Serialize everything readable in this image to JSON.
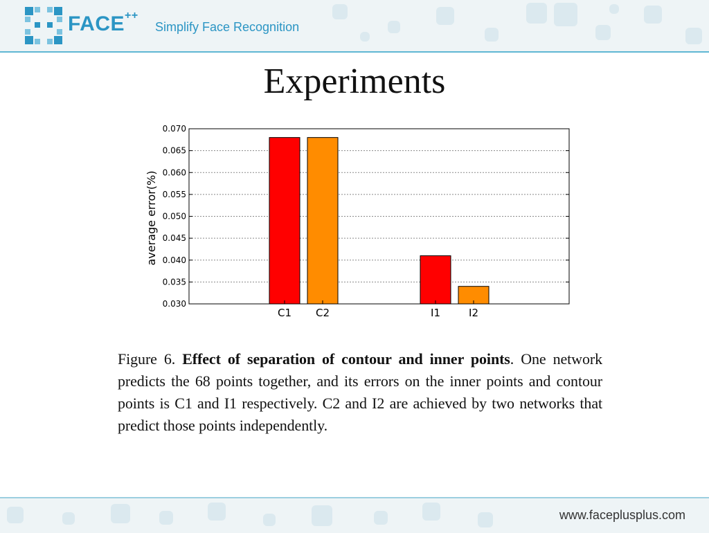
{
  "header": {
    "logo_text": "FACE",
    "logo_sup": "++",
    "tagline": "Simplify Face Recognition"
  },
  "slide": {
    "title": "Experiments"
  },
  "caption": {
    "prefix": "Figure 6. ",
    "bold": "Effect of separation of contour and inner points",
    "rest": ". One network predicts the 68 points together, and its errors on the inner points and contour points is C1 and I1 respectively. C2 and I2 are achieved by two networks that predict those points independently."
  },
  "footer": {
    "url": "www.faceplusplus.com"
  },
  "colors": {
    "brand": "#2b95c4",
    "red": "#ff0000",
    "orange": "#ff8c00"
  },
  "chart_data": {
    "type": "bar",
    "categories": [
      "C1",
      "C2",
      "I1",
      "I2"
    ],
    "values": [
      0.068,
      0.068,
      0.041,
      0.034
    ],
    "bar_colors": [
      "#ff0000",
      "#ff8c00",
      "#ff0000",
      "#ff8c00"
    ],
    "ylabel": "average error(%)",
    "ylim": [
      0.03,
      0.07
    ],
    "yticks": [
      "0.030",
      "0.035",
      "0.040",
      "0.045",
      "0.050",
      "0.055",
      "0.060",
      "0.065",
      "0.070"
    ],
    "grid": true
  }
}
